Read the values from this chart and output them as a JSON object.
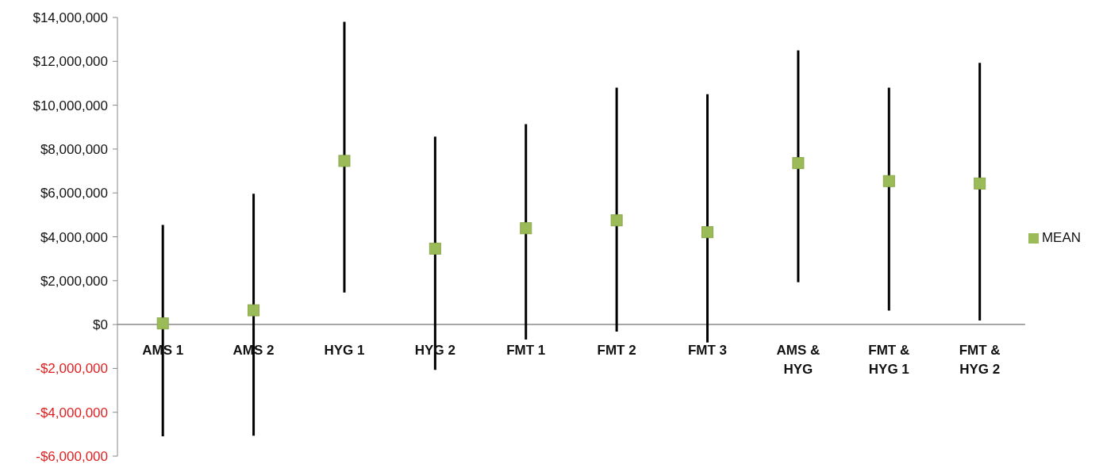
{
  "chart_data": {
    "type": "scatter",
    "categories": [
      "AMS 1",
      "AMS 2",
      "HYG 1",
      "HYG 2",
      "FMT 1",
      "FMT 2",
      "FMT 3",
      "AMS & HYG",
      "FMT & HYG 1",
      "FMT & HYG 2"
    ],
    "series": [
      {
        "name": "MEAN",
        "color": "#9bbb59",
        "values": [
          50000,
          650000,
          7460000,
          3460000,
          4390000,
          4750000,
          4210000,
          7360000,
          6540000,
          6430000
        ],
        "errors": [
          [
            -5100000,
            4540000
          ],
          [
            -5070000,
            5960000
          ],
          [
            1460000,
            13800000
          ],
          [
            -2070000,
            8570000
          ],
          [
            -680000,
            9140000
          ],
          [
            -320000,
            10800000
          ],
          [
            -820000,
            10500000
          ],
          [
            1930000,
            12500000
          ],
          [
            640000,
            10800000
          ],
          [
            180000,
            11930000
          ]
        ]
      }
    ],
    "ylim": [
      -6000000,
      14000000
    ],
    "yticks": [
      {
        "value": -6000000,
        "label": "-$6,000,000"
      },
      {
        "value": -4000000,
        "label": "-$4,000,000"
      },
      {
        "value": -2000000,
        "label": "-$2,000,000"
      },
      {
        "value": 0,
        "label": "$0"
      },
      {
        "value": 2000000,
        "label": "$2,000,000"
      },
      {
        "value": 4000000,
        "label": "$4,000,000"
      },
      {
        "value": 6000000,
        "label": "$6,000,000"
      },
      {
        "value": 8000000,
        "label": "$8,000,000"
      },
      {
        "value": 10000000,
        "label": "$10,000,000"
      },
      {
        "value": 12000000,
        "label": "$12,000,000"
      },
      {
        "value": 14000000,
        "label": "$14,000,000"
      }
    ],
    "marker": "square",
    "legend": "right",
    "grid": false
  }
}
